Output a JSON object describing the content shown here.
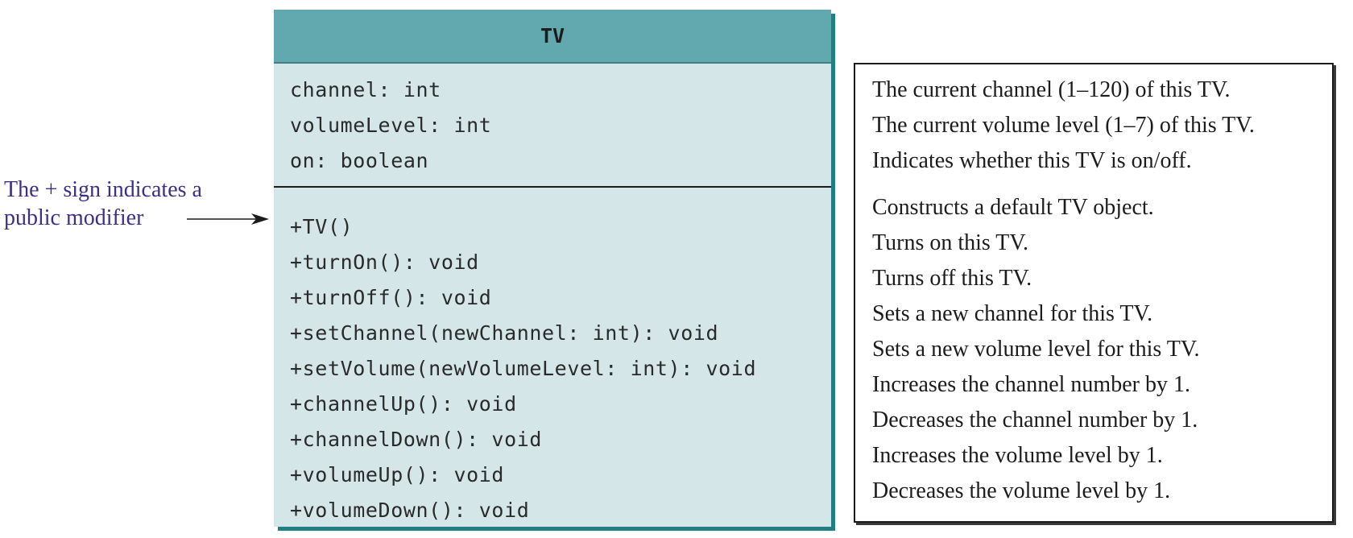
{
  "uml_class": {
    "name": "TV",
    "attributes": [
      "channel: int",
      "volumeLevel: int",
      "on: boolean"
    ],
    "methods": [
      "+TV()",
      "+turnOn(): void",
      "+turnOff(): void",
      "+setChannel(newChannel: int): void",
      "+setVolume(newVolumeLevel: int): void",
      "+channelUp(): void",
      "+channelDown(): void",
      "+volumeUp(): void",
      "+volumeDown(): void"
    ]
  },
  "descriptions": {
    "attributes": [
      "The current channel (1–120) of this TV.",
      "The current volume level (1–7) of this TV.",
      "Indicates whether this TV is on/off."
    ],
    "methods": [
      "Constructs a default TV object.",
      "Turns on this TV.",
      "Turns off this TV.",
      "Sets a new channel for this TV.",
      "Sets a new volume level for this TV.",
      "Increases the channel number by 1.",
      "Decreases the channel number by 1.",
      "Increases the volume level by 1.",
      "Decreases the volume level by 1."
    ]
  },
  "annotation": {
    "line1": "The + sign indicates a",
    "line2": "public modifier"
  },
  "colors": {
    "header": "#62a8af",
    "body": "#d4e6e7",
    "shadow": "#1f7e82",
    "annotation_text": "#3c2f8a"
  }
}
